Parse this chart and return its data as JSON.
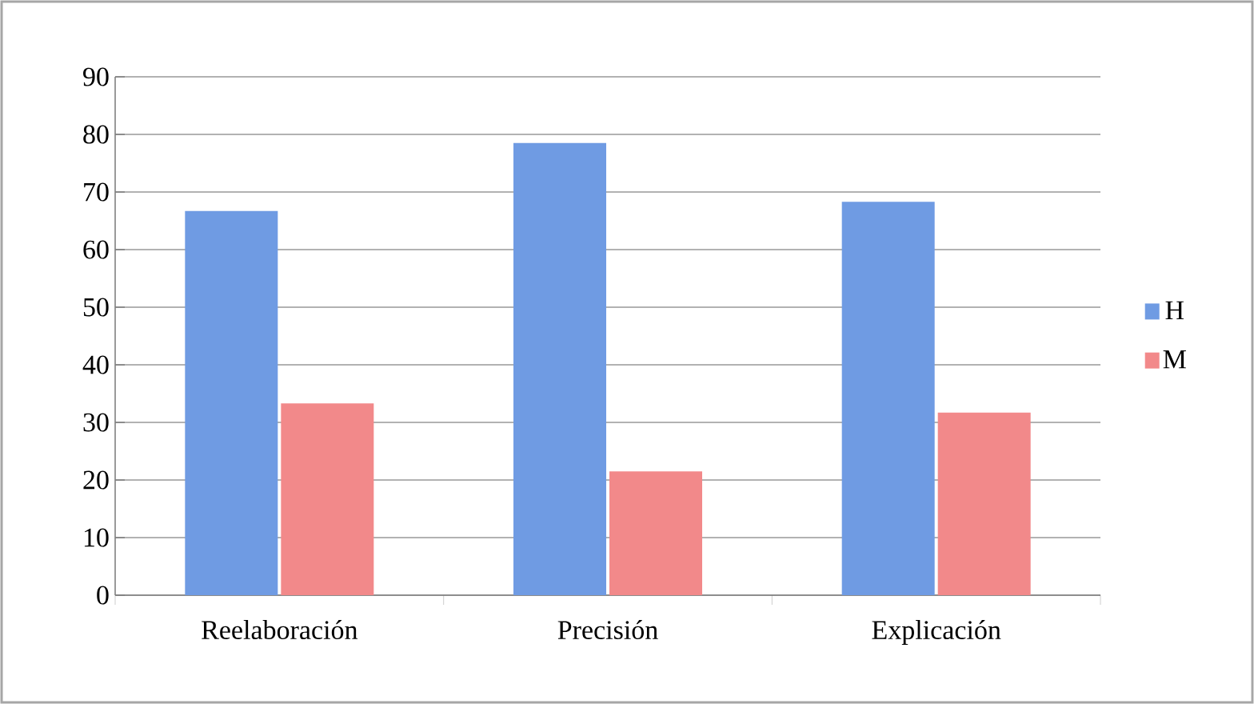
{
  "chart_data": {
    "type": "bar",
    "categories": [
      "Reelaboración",
      "Precisión",
      "Explicación"
    ],
    "series": [
      {
        "name": "H",
        "color": "#6f9be3",
        "values": [
          66.7,
          78.5,
          68.3
        ]
      },
      {
        "name": "M",
        "color": "#f2898a",
        "values": [
          33.3,
          21.5,
          31.7
        ]
      }
    ],
    "ylim": [
      0,
      90
    ],
    "yticks": [
      0,
      10,
      20,
      30,
      40,
      50,
      60,
      70,
      80,
      90
    ],
    "grid": "y",
    "legend": "right"
  }
}
